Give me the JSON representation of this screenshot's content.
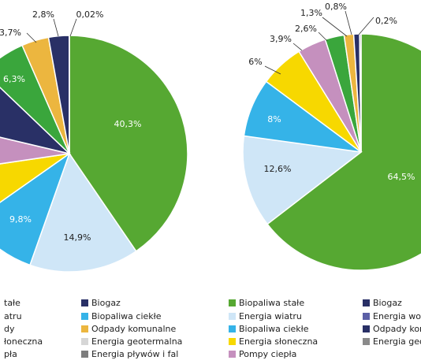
{
  "colors": {
    "biopaliwa_stale": "#56a832",
    "energia_wiatru": "#cfe6f7",
    "biopaliwa_ciekle": "#35b3e8",
    "energia_sloneczna": "#f7d800",
    "pompy_ciepla": "#c590be",
    "energia_wodna": "#5b5fa6",
    "biogaz": "#293066",
    "odpady_komunalne": "#ecb63f",
    "energia_geotermalna": "#d6d6d6",
    "energia_plywow": "#7d7d7d",
    "ogolna": "#8a8a8a"
  },
  "chart_data": [
    {
      "type": "pie",
      "slices": [
        {
          "label": "Biopaliwa stałe",
          "value": 40.3,
          "text": "40,3%",
          "color": "#56a832"
        },
        {
          "label": "Energia wiatru",
          "value": 14.9,
          "text": "14,9%",
          "color": "#cfe6f7"
        },
        {
          "label": "Biopaliwa ciekłe",
          "value": 9.8,
          "text": "9,8%",
          "color": "#35b3e8"
        },
        {
          "label": "Energia słoneczna",
          "value": 7.4,
          "text": "",
          "color": "#f7d800"
        },
        {
          "label": "Pompy ciepła",
          "value": 6.0,
          "text": "",
          "color": "#c590be"
        },
        {
          "label": "Energia wodna",
          "value": 8.4,
          "text": "",
          "color": "#293066"
        },
        {
          "label": "Biopaliwa stałe (2)",
          "value": 6.3,
          "text": "6,3%",
          "color": "#3aa63c"
        },
        {
          "label": "Odpady komunalne",
          "value": 3.7,
          "text": "3,7%",
          "color": "#ecb63f"
        },
        {
          "label": "Biogaz",
          "value": 2.8,
          "text": "2,8%",
          "color": "#293066"
        },
        {
          "label": "Energia geotermalna",
          "value": 0.02,
          "text": "0,02%",
          "color": "#d6d6d6"
        }
      ]
    },
    {
      "type": "pie",
      "slices": [
        {
          "label": "Biopaliwa stałe",
          "value": 64.5,
          "text": "64,5%",
          "color": "#56a832"
        },
        {
          "label": "Energia wiatru",
          "value": 12.6,
          "text": "12,6%",
          "color": "#cfe6f7"
        },
        {
          "label": "Biopaliwa ciekłe",
          "value": 8.0,
          "text": "8%",
          "color": "#35b3e8"
        },
        {
          "label": "Energia słoneczna",
          "value": 6.0,
          "text": "6%",
          "color": "#f7d800"
        },
        {
          "label": "Pompy ciepła",
          "value": 3.9,
          "text": "3,9%",
          "color": "#c590be"
        },
        {
          "label": "Energia wodna",
          "value": 2.6,
          "text": "2,6%",
          "color": "#3aa63c"
        },
        {
          "label": "Odpady komunalne",
          "value": 1.3,
          "text": "1,3%",
          "color": "#ecb63f"
        },
        {
          "label": "Biogaz",
          "value": 0.8,
          "text": "0,8%",
          "color": "#293066"
        },
        {
          "label": "Energia geotermalna",
          "value": 0.2,
          "text": "0,2%",
          "color": "#7d7d7d"
        }
      ]
    }
  ],
  "legend": [
    {
      "text": "tałe",
      "color": "#56a832"
    },
    {
      "text": "Biogaz",
      "color": "#293066"
    },
    {
      "text": "Biopaliwa stałe",
      "color": "#56a832"
    },
    {
      "text": "Biogaz",
      "color": "#293066"
    },
    {
      "text": "atru",
      "color": "#cfe6f7"
    },
    {
      "text": "Biopaliwa ciekłe",
      "color": "#35b3e8"
    },
    {
      "text": "Energia wiatru",
      "color": "#cfe6f7"
    },
    {
      "text": "Energia wod",
      "color": "#5b5fa6"
    },
    {
      "text": "dy",
      "color": "#ecb63f"
    },
    {
      "text": "Odpady komunalne",
      "color": "#ecb63f"
    },
    {
      "text": "Biopaliwa ciekłe",
      "color": "#35b3e8"
    },
    {
      "text": "Odpady kom",
      "color": "#293066"
    },
    {
      "text": "łoneczna",
      "color": "#f7d800"
    },
    {
      "text": "Energia geotermalna",
      "color": "#d6d6d6"
    },
    {
      "text": "Energia słoneczna",
      "color": "#f7d800"
    },
    {
      "text": "Energia geot",
      "color": "#8a8a8a"
    },
    {
      "text": "pła",
      "color": "#c590be"
    },
    {
      "text": "Energia pływów i fal",
      "color": "#7d7d7d"
    },
    {
      "text": "Pompy ciepła",
      "color": "#c590be"
    }
  ]
}
